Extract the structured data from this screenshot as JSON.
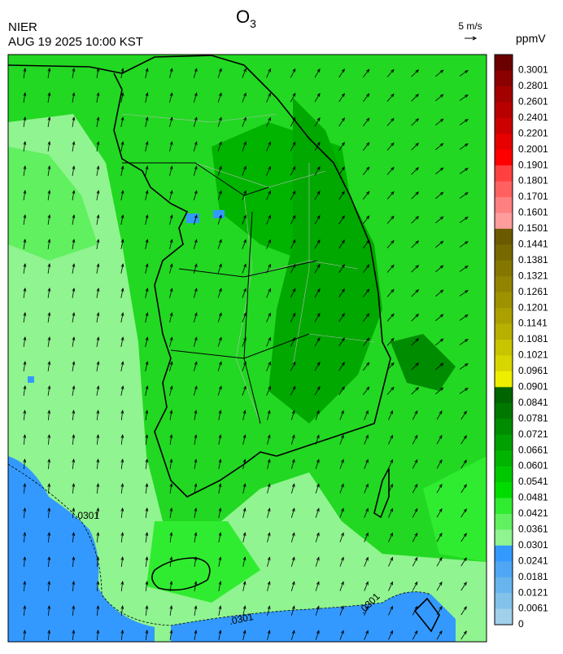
{
  "header": {
    "agency": "NIER",
    "timestamp": "AUG 19 2025 10:00 KST",
    "title": "O",
    "title_subscript": "3"
  },
  "wind_scale": {
    "label": "5 m/s"
  },
  "colorbar": {
    "unit": "ppmV",
    "levels": [
      {
        "label": "0.3001",
        "color": "#6b0000"
      },
      {
        "label": "0.2801",
        "color": "#8b0000"
      },
      {
        "label": "0.2601",
        "color": "#a30000"
      },
      {
        "label": "0.2401",
        "color": "#b80000"
      },
      {
        "label": "0.2201",
        "color": "#cc0000"
      },
      {
        "label": "0.2001",
        "color": "#e60000"
      },
      {
        "label": "0.1901",
        "color": "#ff0000"
      },
      {
        "label": "0.1801",
        "color": "#ff4040"
      },
      {
        "label": "0.1701",
        "color": "#ff6060"
      },
      {
        "label": "0.1601",
        "color": "#ff8080"
      },
      {
        "label": "0.1501",
        "color": "#ff9c9c"
      },
      {
        "label": "0.1441",
        "color": "#6b5a00"
      },
      {
        "label": "0.1381",
        "color": "#786800"
      },
      {
        "label": "0.1321",
        "color": "#857600"
      },
      {
        "label": "0.1261",
        "color": "#928400"
      },
      {
        "label": "0.1201",
        "color": "#9e9200"
      },
      {
        "label": "0.1141",
        "color": "#aba000"
      },
      {
        "label": "0.1081",
        "color": "#b8b000"
      },
      {
        "label": "0.1021",
        "color": "#c8c400"
      },
      {
        "label": "0.0961",
        "color": "#d8d600"
      },
      {
        "label": "0.0901",
        "color": "#eeee00"
      },
      {
        "label": "0.0841",
        "color": "#006400"
      },
      {
        "label": "0.0781",
        "color": "#007800"
      },
      {
        "label": "0.0721",
        "color": "#008c00"
      },
      {
        "label": "0.0661",
        "color": "#00a000"
      },
      {
        "label": "0.0601",
        "color": "#00b400"
      },
      {
        "label": "0.0541",
        "color": "#00c800"
      },
      {
        "label": "0.0481",
        "color": "#00dc00"
      },
      {
        "label": "0.0421",
        "color": "#30ec30"
      },
      {
        "label": "0.0361",
        "color": "#60f060"
      },
      {
        "label": "0.0301",
        "color": "#90f490"
      },
      {
        "label": "0.0241",
        "color": "#3399ff"
      },
      {
        "label": "0.0181",
        "color": "#4ea6f4"
      },
      {
        "label": "0.0121",
        "color": "#68b4ee"
      },
      {
        "label": "0.0061",
        "color": "#82c2ea"
      },
      {
        "label": "0",
        "color": "#a0d0ea"
      }
    ]
  },
  "map": {
    "contour_labels": [
      ".0301",
      ".0301",
      ".0301"
    ]
  }
}
